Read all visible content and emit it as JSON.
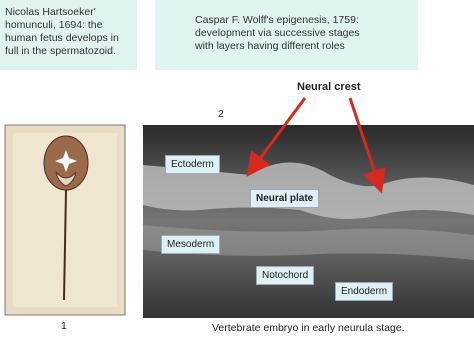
{
  "left_box": {
    "text": "Nicolas Hartsoeker' homunculi, 1694: the human fetus develops in full in the spermatozoid."
  },
  "right_box": {
    "text": "Caspar F. Wolff's epigenesis, 1759: development via successive stages with layers having different roles"
  },
  "figure_1": {
    "number": "1"
  },
  "figure_2": {
    "number": "2",
    "caption": "Vertebrate embryo in early neurula stage.",
    "labels": {
      "neural_crest": "Neural crest",
      "ectoderm": "Ectoderm",
      "neural_plate": "Neural plate",
      "mesoderm": "Mesoderm",
      "notochord": "Notochord",
      "endoderm": "Endoderm"
    }
  }
}
